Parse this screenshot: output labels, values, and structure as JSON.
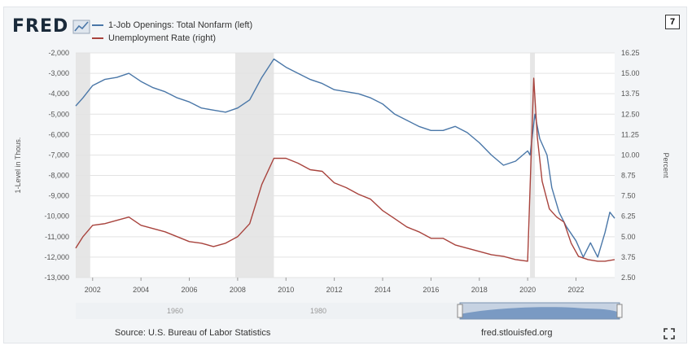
{
  "header": {
    "logo": "FRED",
    "badge": "7",
    "legend": [
      {
        "label": "1-Job Openings: Total Nonfarm (left)",
        "color": "#4a77a8"
      },
      {
        "label": "Unemployment Rate (right)",
        "color": "#a8433d"
      }
    ]
  },
  "footer": {
    "source": "Source: U.S. Bureau of Labor Statistics",
    "url": "fred.stlouisfed.org"
  },
  "navigator": {
    "labels": [
      "1960",
      "1980"
    ]
  },
  "chart_data": {
    "type": "line",
    "title": "",
    "xlabel": "",
    "ylabel_left": "1-Level in Thous.",
    "ylabel_right": "Percent",
    "xlim": [
      2001.3,
      2023.6
    ],
    "ylim_left": [
      -13000,
      -2000
    ],
    "ylim_right": [
      2.5,
      16.25
    ],
    "x_ticks": [
      "2002",
      "2004",
      "2006",
      "2008",
      "2010",
      "2012",
      "2014",
      "2016",
      "2018",
      "2020",
      "2022"
    ],
    "y_ticks_left": [
      "-2,000",
      "-3,000",
      "-4,000",
      "-5,000",
      "-6,000",
      "-7,000",
      "-8,000",
      "-9,000",
      "-10,000",
      "-11,000",
      "-12,000",
      "-13,000"
    ],
    "y_ticks_right": [
      "16.25",
      "15.00",
      "13.75",
      "12.50",
      "11.25",
      "10.00",
      "8.75",
      "7.50",
      "6.25",
      "5.00",
      "3.75",
      "2.50"
    ],
    "recessions": [
      [
        2001.3,
        2001.9
      ],
      [
        2007.9,
        2009.5
      ],
      [
        2020.1,
        2020.3
      ]
    ],
    "series": [
      {
        "name": "1-Job Openings: Total Nonfarm (left)",
        "color": "#4a77a8",
        "axis": "left",
        "x": [
          2001.3,
          2001.6,
          2002.0,
          2002.5,
          2003.0,
          2003.5,
          2004.0,
          2004.5,
          2005.0,
          2005.5,
          2006.0,
          2006.5,
          2007.0,
          2007.5,
          2008.0,
          2008.5,
          2009.0,
          2009.5,
          2010.0,
          2010.5,
          2011.0,
          2011.5,
          2012.0,
          2012.5,
          2013.0,
          2013.5,
          2014.0,
          2014.5,
          2015.0,
          2015.5,
          2016.0,
          2016.5,
          2017.0,
          2017.5,
          2018.0,
          2018.5,
          2019.0,
          2019.5,
          2020.0,
          2020.1,
          2020.3,
          2020.5,
          2020.8,
          2021.0,
          2021.3,
          2021.6,
          2022.0,
          2022.3,
          2022.6,
          2022.9,
          2023.2,
          2023.4,
          2023.6
        ],
        "y": [
          -4600,
          -4200,
          -3600,
          -3300,
          -3200,
          -3000,
          -3400,
          -3700,
          -3900,
          -4200,
          -4400,
          -4700,
          -4800,
          -4900,
          -4700,
          -4300,
          -3200,
          -2300,
          -2700,
          -3000,
          -3300,
          -3500,
          -3800,
          -3900,
          -4000,
          -4200,
          -4500,
          -5000,
          -5300,
          -5600,
          -5800,
          -5800,
          -5600,
          -5900,
          -6400,
          -7000,
          -7500,
          -7300,
          -6800,
          -7000,
          -5000,
          -6200,
          -7000,
          -8600,
          -9800,
          -10500,
          -11200,
          -12000,
          -11300,
          -12000,
          -10800,
          -9800,
          -10100
        ]
      },
      {
        "name": "Unemployment Rate (right)",
        "color": "#a8433d",
        "axis": "right",
        "x": [
          2001.3,
          2001.6,
          2002.0,
          2002.5,
          2003.0,
          2003.5,
          2004.0,
          2004.5,
          2005.0,
          2005.5,
          2006.0,
          2006.5,
          2007.0,
          2007.5,
          2008.0,
          2008.5,
          2009.0,
          2009.5,
          2010.0,
          2010.5,
          2011.0,
          2011.5,
          2012.0,
          2012.5,
          2013.0,
          2013.5,
          2014.0,
          2014.5,
          2015.0,
          2015.5,
          2016.0,
          2016.5,
          2017.0,
          2017.5,
          2018.0,
          2018.5,
          2019.0,
          2019.5,
          2020.0,
          2020.25,
          2020.4,
          2020.6,
          2020.9,
          2021.2,
          2021.5,
          2021.8,
          2022.1,
          2022.5,
          2022.9,
          2023.2,
          2023.6
        ],
        "y": [
          4.3,
          5.0,
          5.7,
          5.8,
          6.0,
          6.2,
          5.7,
          5.5,
          5.3,
          5.0,
          4.7,
          4.6,
          4.4,
          4.6,
          5.0,
          5.8,
          8.2,
          9.8,
          9.8,
          9.5,
          9.1,
          9.0,
          8.3,
          8.0,
          7.6,
          7.3,
          6.6,
          6.1,
          5.6,
          5.3,
          4.9,
          4.9,
          4.5,
          4.3,
          4.1,
          3.9,
          3.8,
          3.6,
          3.5,
          14.7,
          11.1,
          8.4,
          6.7,
          6.2,
          5.9,
          4.6,
          3.8,
          3.6,
          3.5,
          3.5,
          3.6
        ]
      }
    ]
  }
}
